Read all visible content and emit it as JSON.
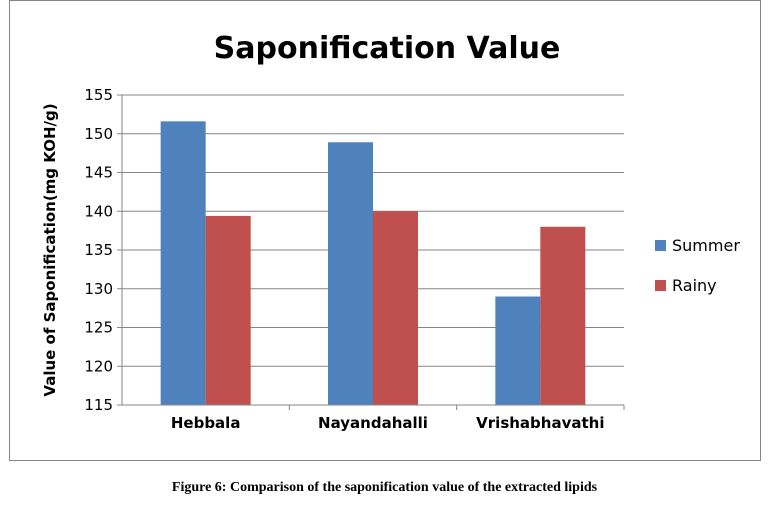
{
  "chart_data": {
    "type": "bar",
    "title": "Saponification Value",
    "xlabel": "",
    "ylabel": "Value of Saponification(mg KOH/g)",
    "categories": [
      "Hebbala",
      "Nayandahalli",
      "Vrishabhavathi"
    ],
    "series": [
      {
        "name": "Summer",
        "color": "#4F81BD",
        "values": [
          151.6,
          148.9,
          129.0
        ]
      },
      {
        "name": "Rainy",
        "color": "#C0504D",
        "values": [
          139.4,
          140.0,
          138.0
        ]
      }
    ],
    "ylim": [
      115,
      155
    ],
    "yticks": [
      115,
      120,
      125,
      130,
      135,
      140,
      145,
      150,
      155
    ],
    "grid": true,
    "legend_position": "right"
  },
  "caption": "Figure 6: Comparison of the saponification value of the extracted lipids"
}
